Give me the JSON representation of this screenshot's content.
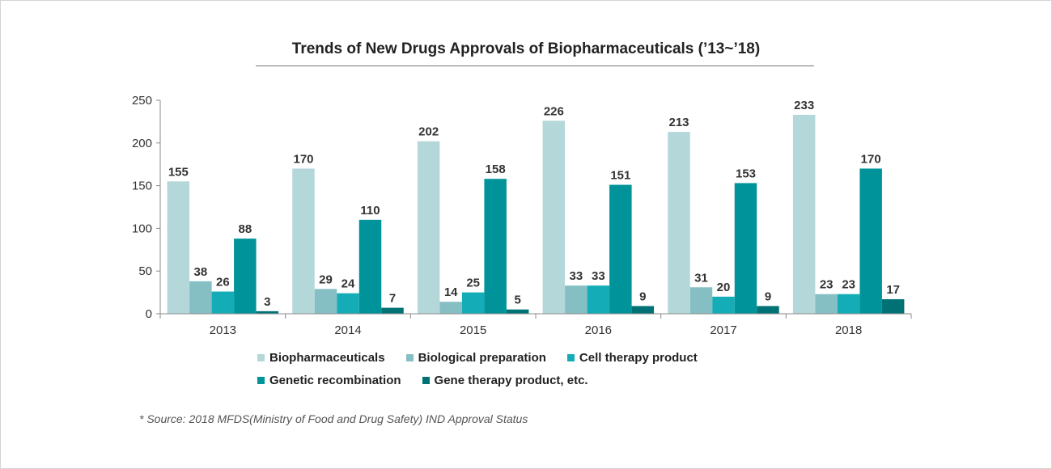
{
  "chart_data": {
    "type": "bar",
    "title": "Trends of New Drugs Approvals of Biopharmaceuticals (’13~’18)",
    "categories": [
      "2013",
      "2014",
      "2015",
      "2016",
      "2017",
      "2018"
    ],
    "series": [
      {
        "name": "Biopharmaceuticals",
        "color": "#b4d8da",
        "values": [
          155,
          170,
          202,
          226,
          213,
          233
        ]
      },
      {
        "name": "Biological preparation",
        "color": "#85bfc4",
        "values": [
          38,
          29,
          14,
          33,
          31,
          23
        ]
      },
      {
        "name": "Cell therapy product",
        "color": "#14adb7",
        "values": [
          26,
          24,
          25,
          33,
          20,
          23
        ]
      },
      {
        "name": "Genetic recombination",
        "color": "#00949a",
        "values": [
          88,
          110,
          158,
          151,
          153,
          170
        ]
      },
      {
        "name": "Gene therapy product, etc.",
        "color": "#007276",
        "values": [
          3,
          7,
          5,
          9,
          9,
          17
        ]
      }
    ],
    "ylim": [
      0,
      250
    ],
    "yticks": [
      0,
      50,
      100,
      150,
      200,
      250
    ],
    "xlabel": "",
    "ylabel": "",
    "grid": false,
    "legend_position": "bottom"
  },
  "source": "* Source: 2018 MFDS(Ministry of Food and Drug Safety) IND Approval Status"
}
